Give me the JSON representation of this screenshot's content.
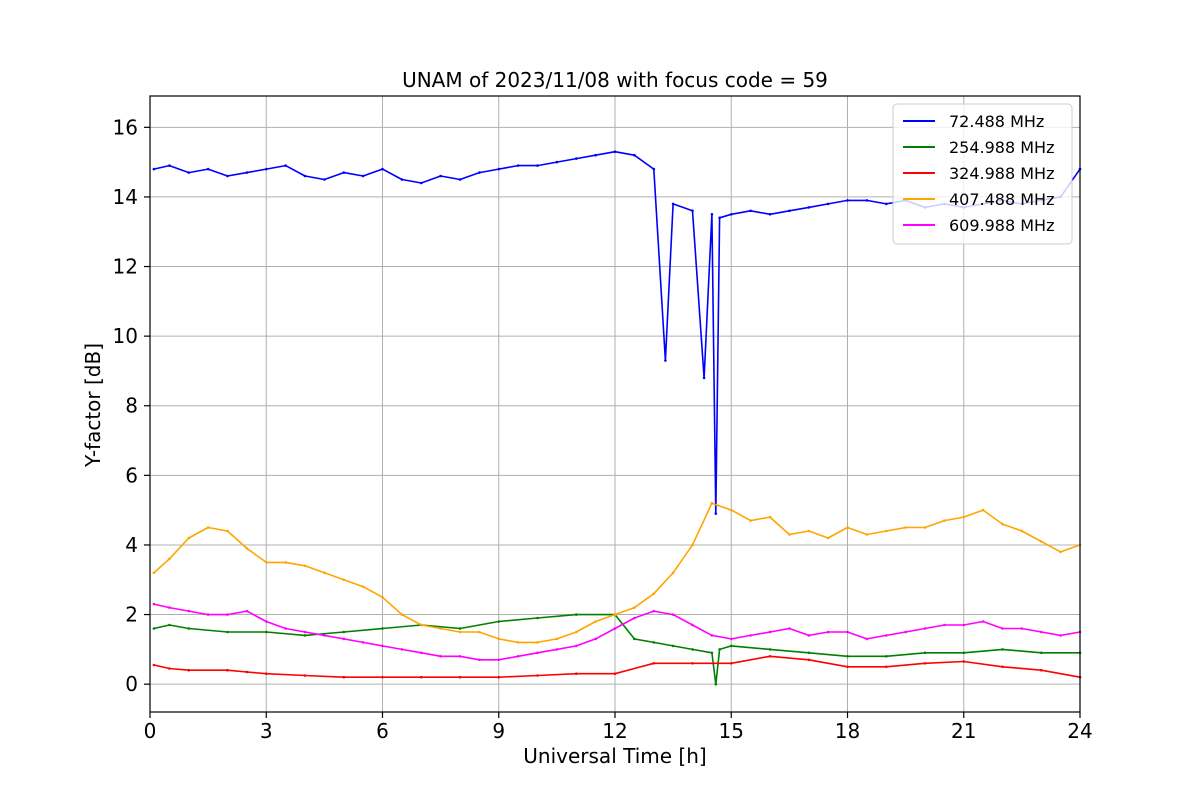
{
  "chart_data": {
    "type": "line",
    "title": "UNAM of 2023/11/08 with focus code = 59",
    "xlabel": "Universal Time [h]",
    "ylabel": "Y-factor [dB]",
    "xlim": [
      0,
      24
    ],
    "ylim": [
      -0.8,
      16.9
    ],
    "xticks": [
      0,
      3,
      6,
      9,
      12,
      15,
      18,
      21,
      24
    ],
    "yticks": [
      0,
      2,
      4,
      6,
      8,
      10,
      12,
      14,
      16
    ],
    "grid": true,
    "legend_position": "upper-right",
    "series": [
      {
        "name": "72.488 MHz",
        "color": "#0000ff",
        "x": [
          0.1,
          0.5,
          1,
          1.5,
          2,
          2.5,
          3,
          3.5,
          4,
          4.5,
          5,
          5.5,
          6,
          6.5,
          7,
          7.5,
          8,
          8.5,
          9,
          9.5,
          10,
          10.5,
          11,
          11.5,
          12,
          12.5,
          13,
          13.3,
          13.5,
          14,
          14.3,
          14.5,
          14.6,
          14.7,
          15,
          15.5,
          16,
          16.5,
          17,
          17.5,
          18,
          18.5,
          19,
          19.5,
          20,
          20.5,
          21,
          21.5,
          22,
          22.5,
          23,
          23.5,
          24
        ],
        "y": [
          14.8,
          14.9,
          14.7,
          14.8,
          14.6,
          14.7,
          14.8,
          14.9,
          14.6,
          14.5,
          14.7,
          14.6,
          14.8,
          14.5,
          14.4,
          14.6,
          14.5,
          14.7,
          14.8,
          14.9,
          14.9,
          15.0,
          15.1,
          15.2,
          15.3,
          15.2,
          14.8,
          9.3,
          13.8,
          13.6,
          8.8,
          13.5,
          4.9,
          13.4,
          13.5,
          13.6,
          13.5,
          13.6,
          13.7,
          13.8,
          13.9,
          13.9,
          13.8,
          13.9,
          13.7,
          13.8,
          13.7,
          13.8,
          13.9,
          13.8,
          13.9,
          14.0,
          14.8
        ]
      },
      {
        "name": "254.988 MHz",
        "color": "#008000",
        "x": [
          0.1,
          0.5,
          1,
          2,
          3,
          4,
          5,
          6,
          7,
          8,
          9,
          10,
          11,
          12,
          12.5,
          13,
          13.5,
          14,
          14.5,
          14.6,
          14.7,
          15,
          16,
          17,
          18,
          19,
          20,
          21,
          22,
          23,
          24
        ],
        "y": [
          1.6,
          1.7,
          1.6,
          1.5,
          1.5,
          1.4,
          1.5,
          1.6,
          1.7,
          1.6,
          1.8,
          1.9,
          2.0,
          2.0,
          1.3,
          1.2,
          1.1,
          1.0,
          0.9,
          0.0,
          1.0,
          1.1,
          1.0,
          0.9,
          0.8,
          0.8,
          0.9,
          0.9,
          1.0,
          0.9,
          0.9
        ]
      },
      {
        "name": "324.988 MHz",
        "color": "#ff0000",
        "x": [
          0.1,
          0.5,
          1,
          2,
          2.5,
          3,
          4,
          5,
          6,
          7,
          8,
          9,
          10,
          11,
          12,
          13,
          14,
          15,
          16,
          17,
          18,
          19,
          20,
          21,
          22,
          23,
          24
        ],
        "y": [
          0.55,
          0.45,
          0.4,
          0.4,
          0.35,
          0.3,
          0.25,
          0.2,
          0.2,
          0.2,
          0.2,
          0.2,
          0.25,
          0.3,
          0.3,
          0.6,
          0.6,
          0.6,
          0.8,
          0.7,
          0.5,
          0.5,
          0.6,
          0.65,
          0.5,
          0.4,
          0.2
        ]
      },
      {
        "name": "407.488 MHz",
        "color": "#ffa500",
        "x": [
          0.1,
          0.5,
          1,
          1.5,
          2,
          2.5,
          3,
          3.5,
          4,
          4.5,
          5,
          5.5,
          6,
          6.5,
          7,
          7.5,
          8,
          8.5,
          9,
          9.5,
          10,
          10.5,
          11,
          11.5,
          12,
          12.5,
          13,
          13.5,
          14,
          14.5,
          15,
          15.5,
          16,
          16.5,
          17,
          17.5,
          18,
          18.5,
          19,
          19.5,
          20,
          20.5,
          21,
          21.5,
          22,
          22.5,
          23,
          23.5,
          24
        ],
        "y": [
          3.2,
          3.6,
          4.2,
          4.5,
          4.4,
          3.9,
          3.5,
          3.5,
          3.4,
          3.2,
          3.0,
          2.8,
          2.5,
          2.0,
          1.7,
          1.6,
          1.5,
          1.5,
          1.3,
          1.2,
          1.2,
          1.3,
          1.5,
          1.8,
          2.0,
          2.2,
          2.6,
          3.2,
          4.0,
          5.2,
          5.0,
          4.7,
          4.8,
          4.3,
          4.4,
          4.2,
          4.5,
          4.3,
          4.4,
          4.5,
          4.5,
          4.7,
          4.8,
          5.0,
          4.6,
          4.4,
          4.1,
          3.8,
          4.0
        ]
      },
      {
        "name": "609.988 MHz",
        "color": "#ff00ff",
        "x": [
          0.1,
          0.5,
          1,
          1.5,
          2,
          2.5,
          3,
          3.5,
          4,
          4.5,
          5,
          5.5,
          6,
          6.5,
          7,
          7.5,
          8,
          8.5,
          9,
          9.5,
          10,
          10.5,
          11,
          11.5,
          12,
          12.5,
          13,
          13.5,
          14,
          14.5,
          15,
          15.5,
          16,
          16.5,
          17,
          17.5,
          18,
          18.5,
          19,
          19.5,
          20,
          20.5,
          21,
          21.5,
          22,
          22.5,
          23,
          23.5,
          24
        ],
        "y": [
          2.3,
          2.2,
          2.1,
          2.0,
          2.0,
          2.1,
          1.8,
          1.6,
          1.5,
          1.4,
          1.3,
          1.2,
          1.1,
          1.0,
          0.9,
          0.8,
          0.8,
          0.7,
          0.7,
          0.8,
          0.9,
          1.0,
          1.1,
          1.3,
          1.6,
          1.9,
          2.1,
          2.0,
          1.7,
          1.4,
          1.3,
          1.4,
          1.5,
          1.6,
          1.4,
          1.5,
          1.5,
          1.3,
          1.4,
          1.5,
          1.6,
          1.7,
          1.7,
          1.8,
          1.6,
          1.6,
          1.5,
          1.4,
          1.5
        ]
      }
    ]
  }
}
